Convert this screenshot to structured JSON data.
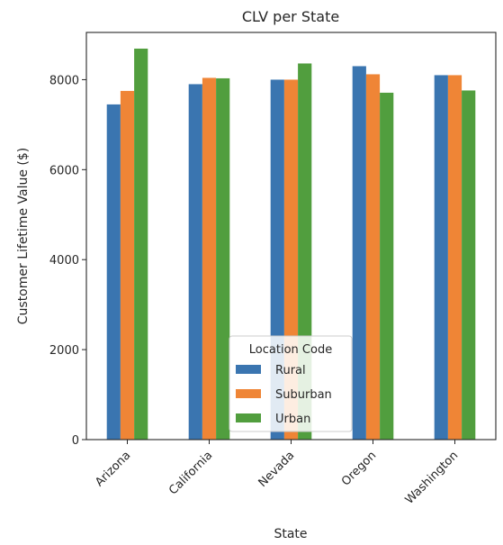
{
  "chart_data": {
    "type": "bar",
    "title": "CLV per State",
    "xlabel": "State",
    "ylabel": "Customer Lifetime Value ($)",
    "categories": [
      "Arizona",
      "California",
      "Nevada",
      "Oregon",
      "Washington"
    ],
    "series": [
      {
        "name": "Rural",
        "color": "#3a75b0",
        "values": [
          7450,
          7900,
          8000,
          8300,
          8100
        ]
      },
      {
        "name": "Suburban",
        "color": "#ef8536",
        "values": [
          7750,
          8040,
          8000,
          8120,
          8100
        ]
      },
      {
        "name": "Urban",
        "color": "#519e3e",
        "values": [
          8690,
          8030,
          8360,
          7710,
          7760
        ]
      }
    ],
    "ylim": [
      0,
      9050
    ],
    "yticks": [
      0,
      2000,
      4000,
      6000,
      8000
    ],
    "ytick_labels": [
      "0",
      "2000",
      "4000",
      "6000",
      "8000"
    ],
    "grid": false,
    "legend": {
      "title": "Location Code",
      "position": "lower-center"
    }
  }
}
